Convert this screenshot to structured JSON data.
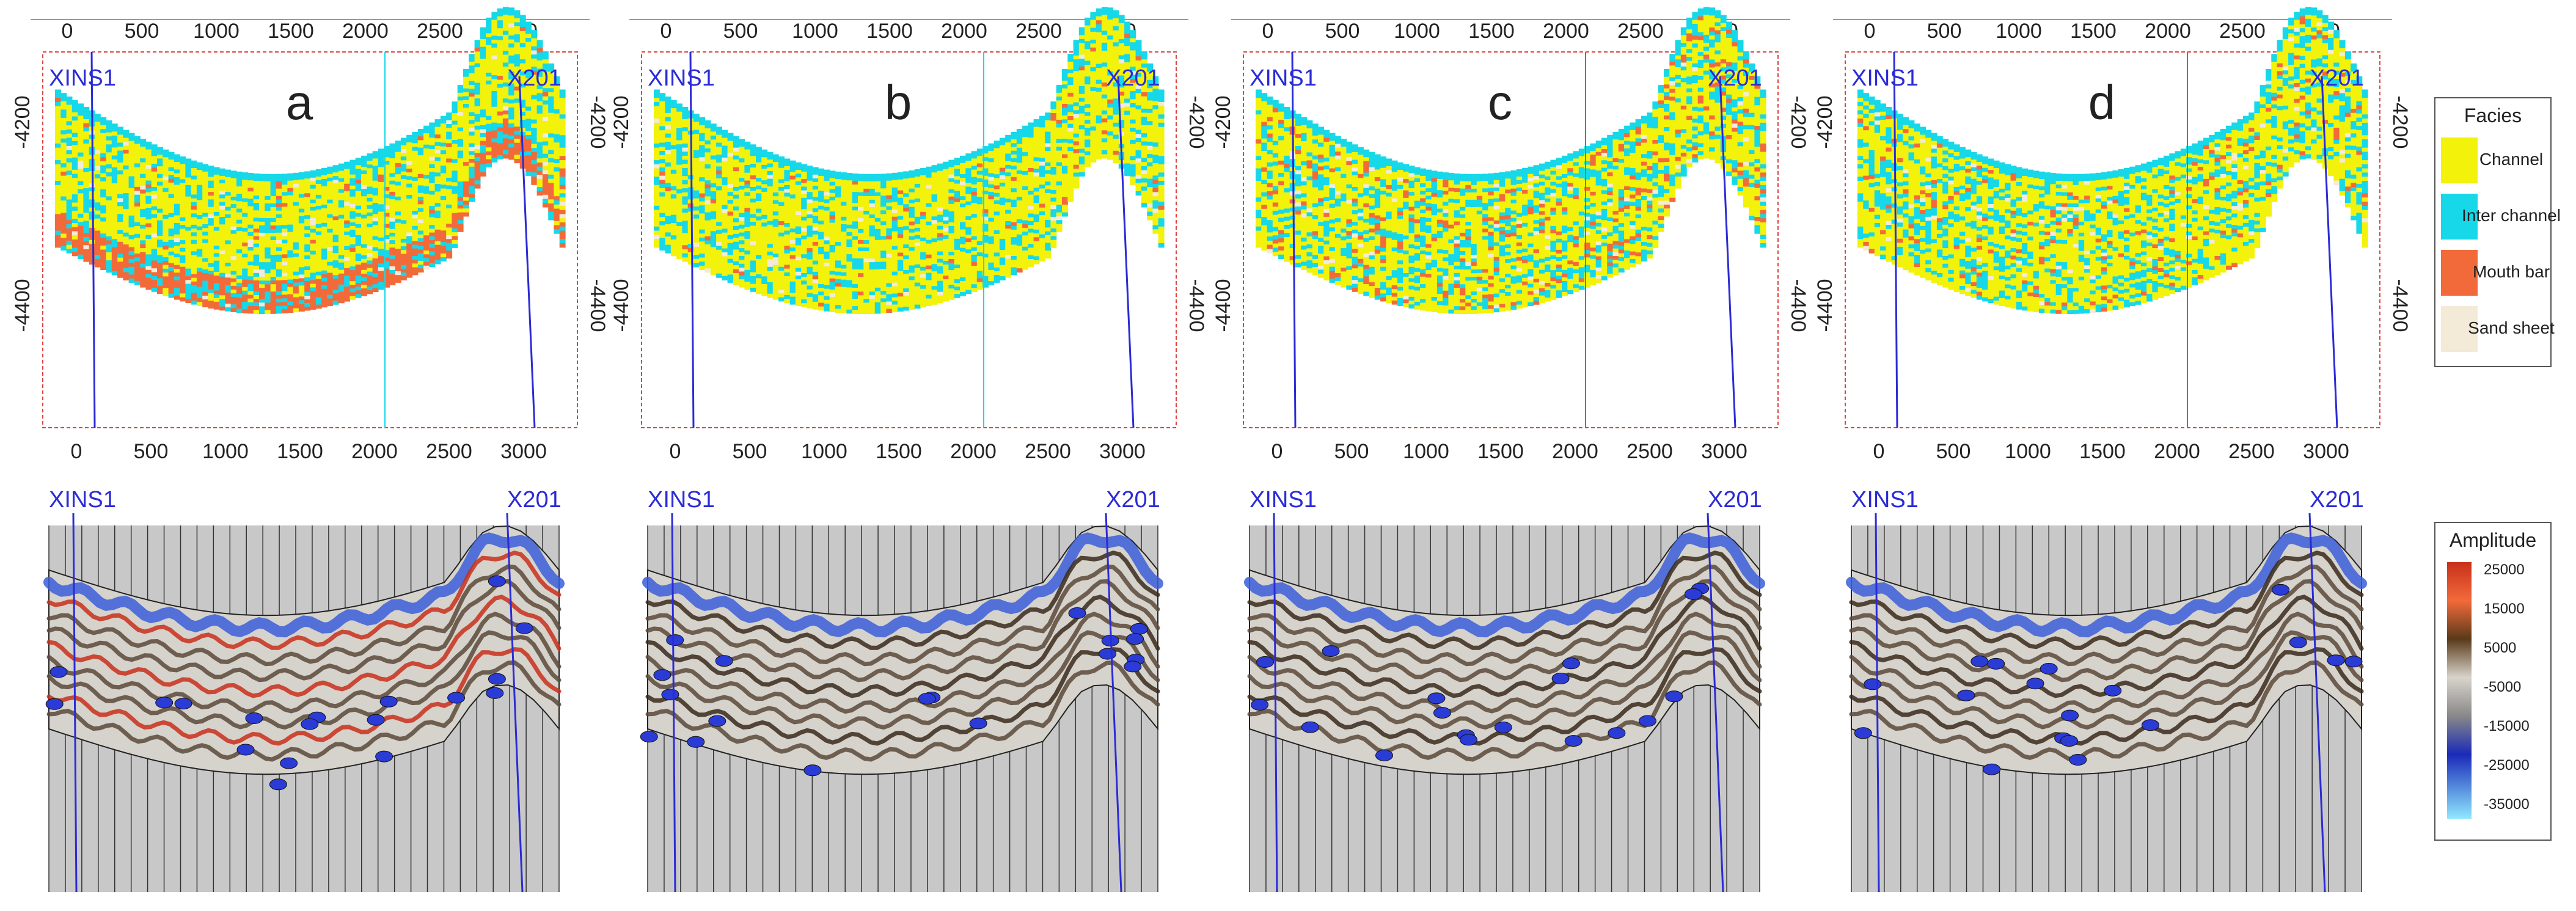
{
  "x_ticks": [
    "0",
    "500",
    "1000",
    "1500",
    "2000",
    "2500",
    "3000"
  ],
  "depth_ticks": [
    "-4200",
    "-4400"
  ],
  "wells": {
    "left": "XINS1",
    "right": "X201"
  },
  "panels": [
    {
      "label": "a",
      "dominant": "channel_interchannel_mouthbar_base"
    },
    {
      "label": "b",
      "dominant": "channel_with_interchannel"
    },
    {
      "label": "c",
      "dominant": "mixed_mouthbar_sandsheet"
    },
    {
      "label": "d",
      "dominant": "channel_mouthbar_mid"
    }
  ],
  "facies_legend": {
    "title": "Facies",
    "items": [
      {
        "label": "Channel",
        "color": "#f2f20a"
      },
      {
        "label": "Inter channel",
        "color": "#16d8e8"
      },
      {
        "label": "Mouth bar",
        "color": "#f26a3a"
      },
      {
        "label": "Sand sheet",
        "color": "#f3ead8"
      }
    ]
  },
  "amplitude_legend": {
    "title": "Amplitude",
    "ticks": [
      "25000",
      "15000",
      "5000",
      "-5000",
      "-15000",
      "-25000",
      "-35000"
    ]
  }
}
